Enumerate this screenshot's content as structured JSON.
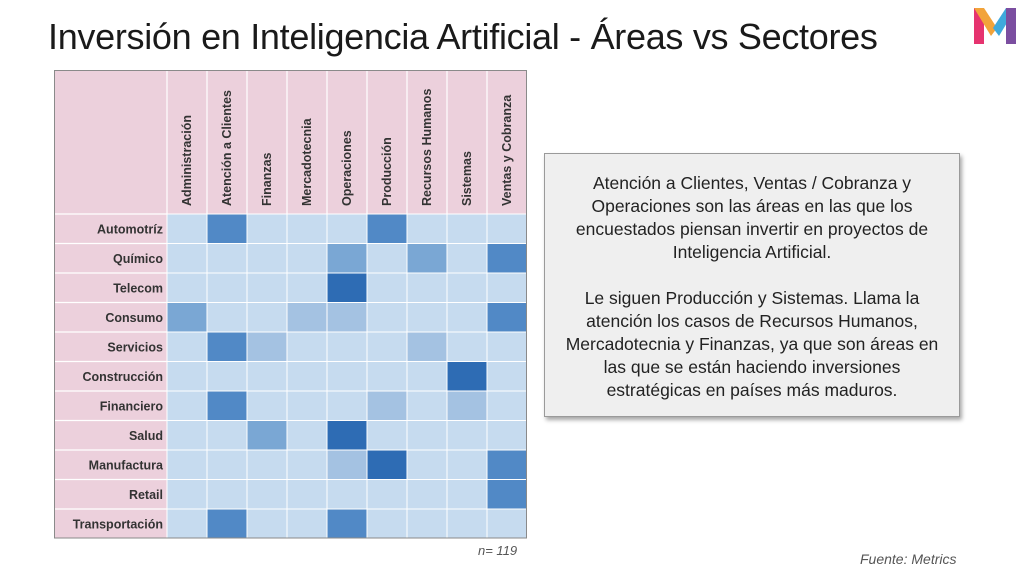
{
  "title": "Inversión en Inteligencia Artificial - Áreas vs Sectores",
  "logo": {
    "letter": "M",
    "colors": [
      "#e6336f",
      "#f2a33a",
      "#3fa9dc",
      "#7b4ea0"
    ]
  },
  "callout": {
    "paragraph1": "Atención a Clientes, Ventas / Cobranza y Operaciones son las áreas en las que los encuestados piensan invertir en proyectos de Inteligencia Artificial.",
    "paragraph2": "Le siguen Producción y Sistemas. Llama la atención los casos de Recursos Humanos, Mercadotecnia y Finanzas, ya que son áreas en las que se están haciendo inversiones estratégicas en países más maduros."
  },
  "sample_label": "n= 119",
  "source": "Fuente: Metrics",
  "colors": {
    "label_bg": "#ecd0dc",
    "scale": [
      "#c6dbef",
      "#a4c2e2",
      "#7aa7d4",
      "#5189c6",
      "#2e6cb4"
    ]
  },
  "chart_data": {
    "type": "heatmap",
    "title": "",
    "columns": [
      "Administración",
      "Atención a Clientes",
      "Finanzas",
      "Mercadotecnia",
      "Operaciones",
      "Producción",
      "Recursos Humanos",
      "Sistemas",
      "Ventas y Cobranza"
    ],
    "rows": [
      "Automotríz",
      "Químico",
      "Telecom",
      "Consumo",
      "Servicios",
      "Construcción",
      "Financiero",
      "Salud",
      "Manufactura",
      "Retail",
      "Transportación"
    ],
    "scale_levels": 5,
    "values": [
      [
        0,
        3,
        0,
        0,
        0,
        3,
        0,
        0,
        0
      ],
      [
        0,
        0,
        0,
        0,
        2,
        0,
        2,
        0,
        3
      ],
      [
        0,
        0,
        0,
        0,
        4,
        0,
        0,
        0,
        0
      ],
      [
        2,
        0,
        0,
        1,
        1,
        0,
        0,
        0,
        3
      ],
      [
        0,
        3,
        1,
        0,
        0,
        0,
        1,
        0,
        0
      ],
      [
        0,
        0,
        0,
        0,
        0,
        0,
        0,
        4,
        0
      ],
      [
        0,
        3,
        0,
        0,
        0,
        1,
        0,
        1,
        0
      ],
      [
        0,
        0,
        2,
        0,
        4,
        0,
        0,
        0,
        0
      ],
      [
        0,
        0,
        0,
        0,
        1,
        4,
        0,
        0,
        3
      ],
      [
        0,
        0,
        0,
        0,
        0,
        0,
        0,
        0,
        3
      ],
      [
        0,
        3,
        0,
        0,
        3,
        0,
        0,
        0,
        0
      ]
    ]
  }
}
